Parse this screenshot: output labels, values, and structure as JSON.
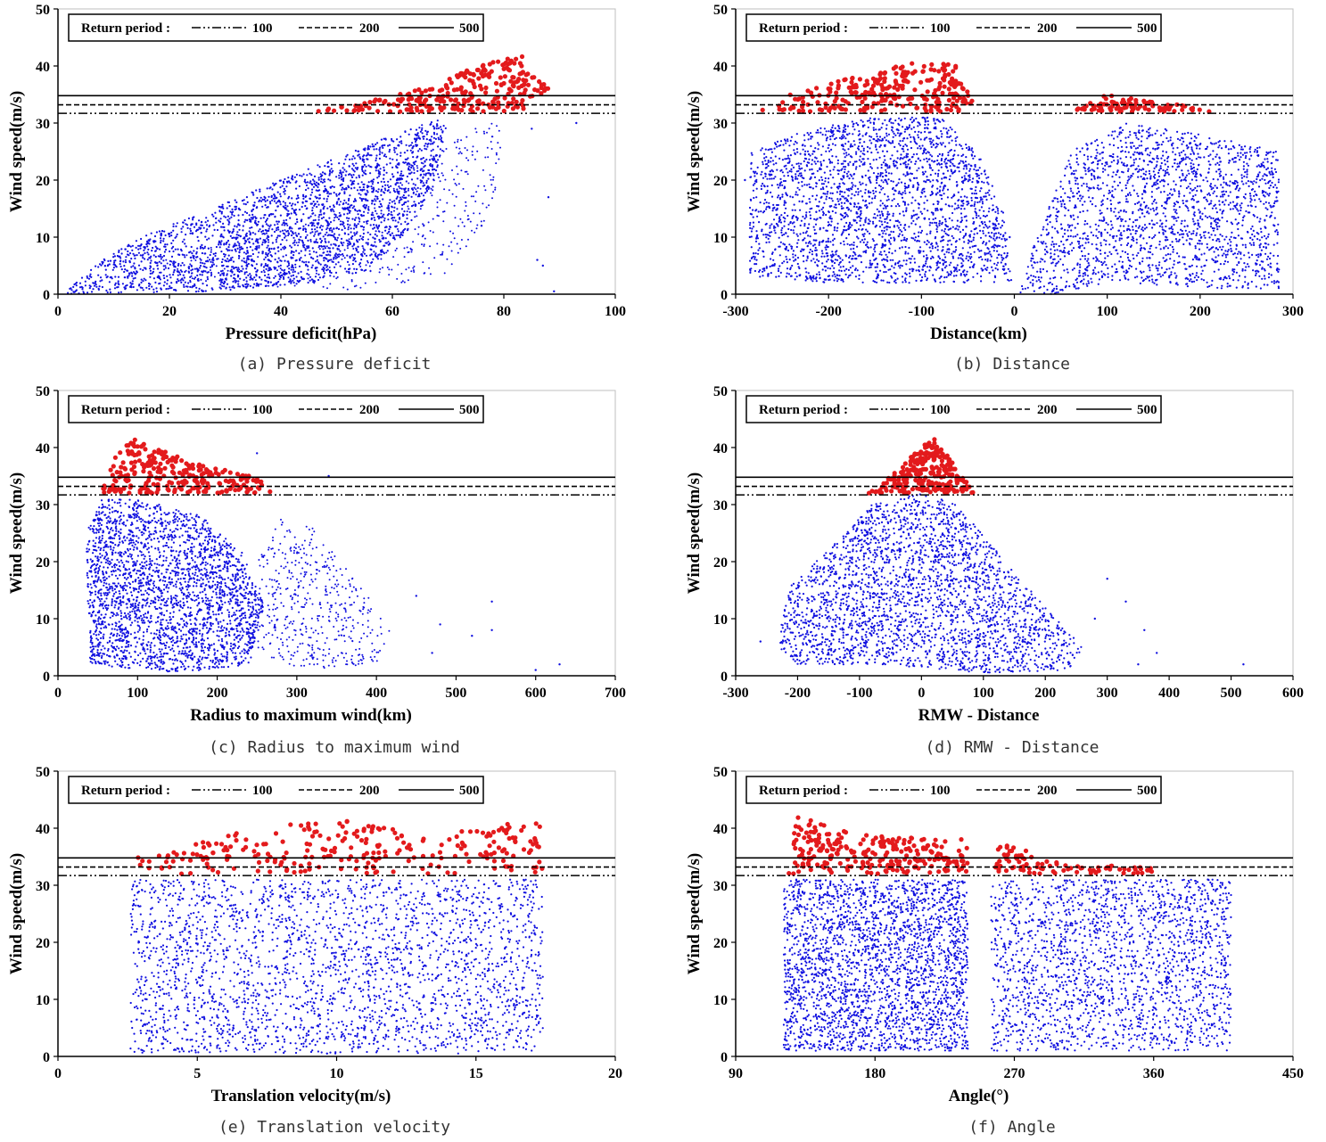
{
  "colors": {
    "scatter": "#1010e0",
    "exceed": "#e31a1c",
    "axis": "#000000",
    "frame": "#bfbfbf"
  },
  "chart_data": [
    {
      "type": "scatter",
      "id": "a",
      "caption": "(a) Pressure deficit",
      "xlabel": "Pressure deficit(hPa)",
      "ylabel": "Wind speed(m/s)",
      "xlim": [
        0,
        100
      ],
      "ylim": [
        0,
        50
      ],
      "xticks": [
        0,
        20,
        40,
        60,
        80,
        100
      ],
      "xtick_labels": [
        "0",
        "20",
        "40",
        "60",
        "80",
        "100"
      ],
      "yticks": [
        0,
        10,
        20,
        30,
        40,
        50
      ],
      "legend": {
        "title": "Return period :",
        "entries": [
          "100",
          "200",
          "500"
        ]
      },
      "return_levels": [
        {
          "period": "100",
          "value": 31.7
        },
        {
          "period": "200",
          "value": 33.2
        },
        {
          "period": "500",
          "value": 34.8
        }
      ],
      "threshold": 32,
      "dense_polygon": [
        [
          1,
          0
        ],
        [
          3,
          2
        ],
        [
          8,
          6
        ],
        [
          15,
          10
        ],
        [
          25,
          14
        ],
        [
          35,
          18
        ],
        [
          45,
          22
        ],
        [
          55,
          26
        ],
        [
          63,
          29
        ],
        [
          70,
          31
        ],
        [
          68,
          20
        ],
        [
          62,
          10
        ],
        [
          55,
          4
        ],
        [
          45,
          2
        ],
        [
          30,
          0.5
        ]
      ],
      "sparse_polygon": [
        [
          10,
          3
        ],
        [
          25,
          8
        ],
        [
          45,
          14
        ],
        [
          60,
          20
        ],
        [
          70,
          26
        ],
        [
          76,
          30
        ],
        [
          80,
          30
        ],
        [
          78,
          15
        ],
        [
          70,
          3
        ],
        [
          50,
          0.5
        ]
      ],
      "exceed_polygon": [
        [
          45,
          32
        ],
        [
          52,
          33
        ],
        [
          60,
          35
        ],
        [
          68,
          37
        ],
        [
          75,
          40
        ],
        [
          83,
          42
        ],
        [
          88,
          36
        ],
        [
          85,
          32
        ]
      ],
      "outliers": [
        [
          85,
          29
        ],
        [
          88,
          17
        ],
        [
          86,
          6
        ],
        [
          87,
          5
        ],
        [
          89,
          0.5
        ],
        [
          76,
          12
        ],
        [
          93,
          30
        ]
      ]
    },
    {
      "type": "scatter",
      "id": "b",
      "caption": "(b) Distance",
      "xlabel": "Distance(km)",
      "ylabel": "Wind speed(m/s)",
      "xlim": [
        -300,
        300
      ],
      "ylim": [
        0,
        50
      ],
      "xticks": [
        -300,
        -200,
        -100,
        0,
        100,
        200,
        300
      ],
      "xtick_labels": [
        "-300",
        "-200",
        "-100",
        "0",
        "100",
        "200",
        "300"
      ],
      "yticks": [
        0,
        10,
        20,
        30,
        40,
        50
      ],
      "legend": {
        "title": "Return period :",
        "entries": [
          "100",
          "200",
          "500"
        ]
      },
      "return_levels": [
        {
          "period": "100",
          "value": 31.7
        },
        {
          "period": "200",
          "value": 33.2
        },
        {
          "period": "500",
          "value": 34.8
        }
      ],
      "threshold": 32,
      "dense_polygon": [
        [
          -285,
          3
        ],
        [
          -285,
          25
        ],
        [
          -220,
          29
        ],
        [
          -150,
          31
        ],
        [
          -80,
          31
        ],
        [
          -40,
          25
        ],
        [
          -10,
          14
        ],
        [
          -3,
          2
        ],
        [
          -80,
          2
        ],
        [
          -200,
          2
        ]
      ],
      "dense_polygon_2": [
        [
          5,
          0
        ],
        [
          20,
          8
        ],
        [
          60,
          25
        ],
        [
          120,
          30
        ],
        [
          200,
          28
        ],
        [
          285,
          25
        ],
        [
          285,
          1
        ],
        [
          200,
          1
        ],
        [
          100,
          2
        ],
        [
          40,
          0
        ]
      ],
      "exceed_polygon": [
        [
          -280,
          32
        ],
        [
          -230,
          36
        ],
        [
          -150,
          39
        ],
        [
          -100,
          41
        ],
        [
          -60,
          40
        ],
        [
          -40,
          32
        ]
      ],
      "exceed_polygon_2": [
        [
          60,
          32
        ],
        [
          100,
          35
        ],
        [
          140,
          34
        ],
        [
          230,
          32
        ]
      ],
      "outliers": [
        [
          -290,
          20
        ],
        [
          -20,
          12
        ],
        [
          -5,
          10
        ],
        [
          280,
          12
        ]
      ]
    },
    {
      "type": "scatter",
      "id": "c",
      "caption": "(c) Radius to maximum wind",
      "xlabel": "Radius to maximum wind(km)",
      "ylabel": "Wind speed(m/s)",
      "xlim": [
        0,
        700
      ],
      "ylim": [
        0,
        50
      ],
      "xticks": [
        0,
        100,
        200,
        300,
        400,
        500,
        600,
        700
      ],
      "xtick_labels": [
        "0",
        "100",
        "200",
        "300",
        "400",
        "500",
        "600",
        "700"
      ],
      "yticks": [
        0,
        10,
        20,
        30,
        40,
        50
      ],
      "legend": {
        "title": "Return period :",
        "entries": [
          "100",
          "200",
          "500"
        ]
      },
      "return_levels": [
        {
          "period": "100",
          "value": 31.7
        },
        {
          "period": "200",
          "value": 33.2
        },
        {
          "period": "500",
          "value": 34.8
        }
      ],
      "threshold": 32,
      "dense_polygon": [
        [
          40,
          2
        ],
        [
          35,
          25
        ],
        [
          55,
          31
        ],
        [
          100,
          31
        ],
        [
          180,
          28
        ],
        [
          230,
          22
        ],
        [
          260,
          12
        ],
        [
          240,
          2
        ],
        [
          150,
          0.5
        ]
      ],
      "sparse_polygon": [
        [
          230,
          5
        ],
        [
          250,
          20
        ],
        [
          280,
          28
        ],
        [
          320,
          26
        ],
        [
          380,
          16
        ],
        [
          420,
          8
        ],
        [
          400,
          2
        ],
        [
          300,
          1
        ]
      ],
      "exceed_polygon": [
        [
          55,
          32
        ],
        [
          70,
          38
        ],
        [
          90,
          42
        ],
        [
          120,
          40
        ],
        [
          180,
          37
        ],
        [
          250,
          35
        ],
        [
          270,
          32
        ]
      ],
      "outliers": [
        [
          340,
          35
        ],
        [
          250,
          39
        ],
        [
          450,
          14
        ],
        [
          480,
          9
        ],
        [
          520,
          7
        ],
        [
          545,
          13
        ],
        [
          545,
          8
        ],
        [
          630,
          2
        ],
        [
          600,
          1
        ],
        [
          470,
          4
        ]
      ]
    },
    {
      "type": "scatter",
      "id": "d",
      "caption": "(d) RMW - Distance",
      "xlabel": "RMW - Distance",
      "ylabel": "Wind speed(m/s)",
      "xlim": [
        -300,
        600
      ],
      "ylim": [
        0,
        50
      ],
      "xticks": [
        -300,
        -200,
        -100,
        0,
        100,
        200,
        300,
        400,
        500,
        600
      ],
      "xtick_labels": [
        "-300",
        "-200",
        "-100",
        "0",
        "100",
        "200",
        "300",
        "400",
        "500",
        "600"
      ],
      "yticks": [
        0,
        10,
        20,
        30,
        40,
        50
      ],
      "legend": {
        "title": "Return period :",
        "entries": [
          "100",
          "200",
          "500"
        ]
      },
      "return_levels": [
        {
          "period": "100",
          "value": 31.7
        },
        {
          "period": "200",
          "value": 33.2
        },
        {
          "period": "500",
          "value": 34.8
        }
      ],
      "threshold": 32,
      "dense_polygon": [
        [
          -230,
          5
        ],
        [
          -220,
          15
        ],
        [
          -150,
          22
        ],
        [
          -80,
          30
        ],
        [
          0,
          32
        ],
        [
          60,
          30
        ],
        [
          120,
          22
        ],
        [
          200,
          12
        ],
        [
          260,
          5
        ],
        [
          240,
          1
        ],
        [
          100,
          0.5
        ],
        [
          -60,
          2
        ],
        [
          -200,
          2
        ]
      ],
      "exceed_polygon": [
        [
          -85,
          32
        ],
        [
          -40,
          36
        ],
        [
          0,
          40
        ],
        [
          20,
          42
        ],
        [
          60,
          36
        ],
        [
          85,
          32
        ]
      ],
      "outliers": [
        [
          300,
          17
        ],
        [
          330,
          13
        ],
        [
          360,
          8
        ],
        [
          380,
          4
        ],
        [
          520,
          2
        ],
        [
          -260,
          6
        ],
        [
          280,
          10
        ],
        [
          350,
          2
        ]
      ]
    },
    {
      "type": "scatter",
      "id": "e",
      "caption": "(e) Translation velocity",
      "xlabel": "Translation velocity(m/s)",
      "ylabel": "Wind speed(m/s)",
      "xlim": [
        0,
        20
      ],
      "ylim": [
        0,
        50
      ],
      "xticks": [
        0,
        5,
        10,
        15,
        20
      ],
      "xtick_labels": [
        "0",
        "5",
        "10",
        "15",
        "20"
      ],
      "yticks": [
        0,
        10,
        20,
        30,
        40,
        50
      ],
      "legend": {
        "title": "Return period :",
        "entries": [
          "100",
          "200",
          "500"
        ]
      },
      "return_levels": [
        {
          "period": "100",
          "value": 31.7
        },
        {
          "period": "200",
          "value": 33.2
        },
        {
          "period": "500",
          "value": 34.8
        }
      ],
      "threshold": 32,
      "dense_polygon": [
        [
          2.6,
          0.5
        ],
        [
          2.6,
          31
        ],
        [
          17.4,
          31
        ],
        [
          17.4,
          0.5
        ]
      ],
      "exceed_polygon": [
        [
          2.7,
          32
        ],
        [
          2.7,
          35
        ],
        [
          5,
          38
        ],
        [
          10,
          42
        ],
        [
          13,
          40
        ],
        [
          17.4,
          41
        ],
        [
          17.4,
          32
        ]
      ],
      "outliers": []
    },
    {
      "type": "scatter",
      "id": "f",
      "caption": "(f) Angle",
      "xlabel": "Angle(°)",
      "ylabel": "Wind speed(m/s)",
      "xlim": [
        90,
        450
      ],
      "ylim": [
        0,
        50
      ],
      "xticks": [
        90,
        180,
        270,
        360,
        450
      ],
      "xtick_labels": [
        "90",
        "180",
        "270",
        "360",
        "450"
      ],
      "yticks": [
        0,
        10,
        20,
        30,
        40,
        50
      ],
      "legend": {
        "title": "Return period :",
        "entries": [
          "100",
          "200",
          "500"
        ]
      },
      "return_levels": [
        {
          "period": "100",
          "value": 31.7
        },
        {
          "period": "200",
          "value": 33.2
        },
        {
          "period": "500",
          "value": 34.8
        }
      ],
      "threshold": 32,
      "dense_polygon": [
        [
          121,
          1
        ],
        [
          121,
          31
        ],
        [
          240,
          31
        ],
        [
          240,
          1
        ]
      ],
      "dense_polygon_2": [
        [
          255,
          1
        ],
        [
          255,
          31
        ],
        [
          410,
          31
        ],
        [
          410,
          1
        ]
      ],
      "exceed_polygon": [
        [
          121,
          32
        ],
        [
          130,
          42
        ],
        [
          170,
          39
        ],
        [
          240,
          38
        ],
        [
          240,
          32
        ]
      ],
      "exceed_polygon_2": [
        [
          255,
          32
        ],
        [
          260,
          38
        ],
        [
          300,
          34
        ],
        [
          360,
          33
        ],
        [
          370,
          32
        ]
      ],
      "outliers": [
        [
          395,
          31
        ],
        [
          400,
          29
        ]
      ]
    }
  ]
}
